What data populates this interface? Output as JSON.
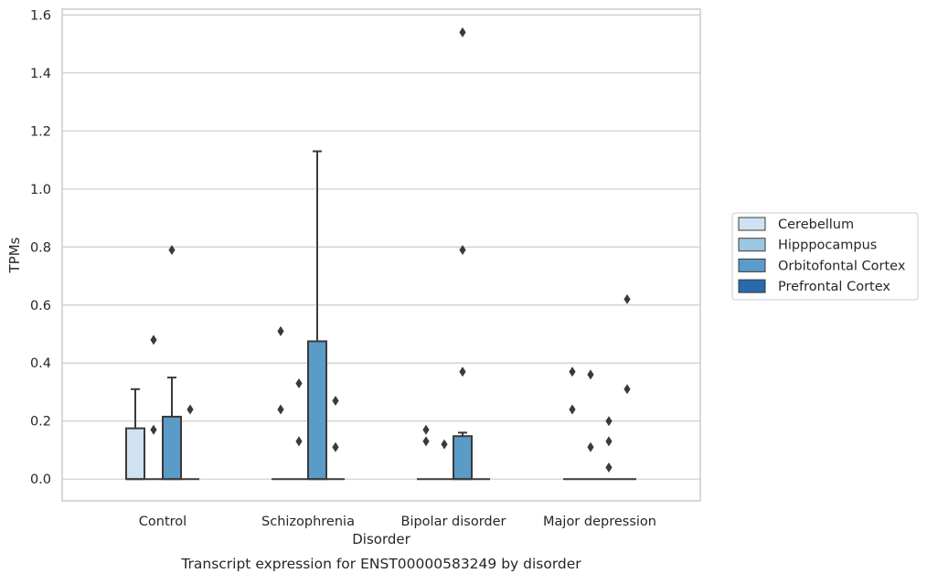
{
  "chart_data": {
    "type": "box",
    "title": "",
    "caption": "Transcript expression for ENST00000583249 by disorder",
    "xlabel": "Disorder",
    "ylabel": "TPMs",
    "ylim": [
      -0.075,
      1.62
    ],
    "yticks": [
      0.0,
      0.2,
      0.4,
      0.6,
      0.8,
      1.0,
      1.2,
      1.4,
      1.6
    ],
    "ytick_labels": [
      "0.0",
      "0.2",
      "0.4",
      "0.6",
      "0.8",
      "1.0",
      "1.2",
      "1.4",
      "1.6"
    ],
    "categories": [
      "Control",
      "Schizophrenia",
      "Bipolar disorder",
      "Major depression"
    ],
    "grid": true,
    "legend_position": "right",
    "series": [
      {
        "name": "Cerebellum",
        "color": "#d0e1f1",
        "boxes": [
          {
            "category": "Control",
            "q1": 0.0,
            "median": 0.0,
            "q3": 0.175,
            "whisker_low": 0.0,
            "whisker_high": 0.31,
            "outliers": []
          },
          {
            "category": "Schizophrenia",
            "q1": 0.0,
            "median": 0.0,
            "q3": 0.0,
            "whisker_low": 0.0,
            "whisker_high": 0.0,
            "outliers": [
              0.51,
              0.24
            ]
          },
          {
            "category": "Bipolar disorder",
            "q1": 0.0,
            "median": 0.0,
            "q3": 0.0,
            "whisker_low": 0.0,
            "whisker_high": 0.0,
            "outliers": [
              0.17,
              0.13
            ]
          },
          {
            "category": "Major depression",
            "q1": 0.0,
            "median": 0.0,
            "q3": 0.0,
            "whisker_low": 0.0,
            "whisker_high": 0.0,
            "outliers": [
              0.37,
              0.24
            ]
          }
        ]
      },
      {
        "name": "Hipppocampus",
        "color": "#9ac8e0",
        "boxes": [
          {
            "category": "Control",
            "q1": 0.0,
            "median": 0.0,
            "q3": 0.0,
            "whisker_low": 0.0,
            "whisker_high": 0.0,
            "outliers": [
              0.48,
              0.17
            ]
          },
          {
            "category": "Schizophrenia",
            "q1": 0.0,
            "median": 0.0,
            "q3": 0.0,
            "whisker_low": 0.0,
            "whisker_high": 0.0,
            "outliers": [
              0.33,
              0.13
            ]
          },
          {
            "category": "Bipolar disorder",
            "q1": 0.0,
            "median": 0.0,
            "q3": 0.0,
            "whisker_low": 0.0,
            "whisker_high": 0.0,
            "outliers": [
              0.12
            ]
          },
          {
            "category": "Major depression",
            "q1": 0.0,
            "median": 0.0,
            "q3": 0.0,
            "whisker_low": 0.0,
            "whisker_high": 0.0,
            "outliers": [
              0.36,
              0.11
            ]
          }
        ]
      },
      {
        "name": "Orbitofontal Cortex",
        "color": "#5a9bc8",
        "boxes": [
          {
            "category": "Control",
            "q1": 0.0,
            "median": 0.0,
            "q3": 0.215,
            "whisker_low": 0.0,
            "whisker_high": 0.35,
            "outliers": [
              0.79
            ]
          },
          {
            "category": "Schizophrenia",
            "q1": 0.0,
            "median": 0.0,
            "q3": 0.475,
            "whisker_low": 0.0,
            "whisker_high": 1.13,
            "outliers": []
          },
          {
            "category": "Bipolar disorder",
            "q1": 0.0,
            "median": 0.0,
            "q3": 0.148,
            "whisker_low": 0.0,
            "whisker_high": 0.16,
            "outliers": [
              1.54,
              0.79,
              0.37
            ]
          },
          {
            "category": "Major depression",
            "q1": 0.0,
            "median": 0.0,
            "q3": 0.0,
            "whisker_low": 0.0,
            "whisker_high": 0.0,
            "outliers": [
              0.2,
              0.13,
              0.04
            ]
          }
        ]
      },
      {
        "name": "Prefrontal Cortex",
        "color": "#2a6aaa",
        "boxes": [
          {
            "category": "Control",
            "q1": 0.0,
            "median": 0.0,
            "q3": 0.0,
            "whisker_low": 0.0,
            "whisker_high": 0.0,
            "outliers": [
              0.24
            ]
          },
          {
            "category": "Schizophrenia",
            "q1": 0.0,
            "median": 0.0,
            "q3": 0.0,
            "whisker_low": 0.0,
            "whisker_high": 0.0,
            "outliers": [
              0.27,
              0.11
            ]
          },
          {
            "category": "Bipolar disorder",
            "q1": 0.0,
            "median": 0.0,
            "q3": 0.0,
            "whisker_low": 0.0,
            "whisker_high": 0.0,
            "outliers": []
          },
          {
            "category": "Major depression",
            "q1": 0.0,
            "median": 0.0,
            "q3": 0.0,
            "whisker_low": 0.0,
            "whisker_high": 0.0,
            "outliers": [
              0.62,
              0.31
            ]
          }
        ]
      }
    ]
  },
  "colors": {
    "grid": "#cccccc",
    "frame": "#cccccc",
    "box_edge": "#3a3a3a",
    "outlier": "#3a3a3a",
    "text": "#262626"
  }
}
